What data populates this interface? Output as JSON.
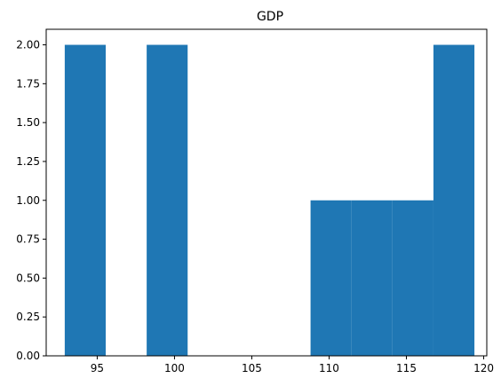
{
  "chart_data": {
    "type": "bar",
    "title": "GDP",
    "xlabel": "",
    "ylabel": "",
    "xlim": [
      91.7,
      120.2
    ],
    "ylim": [
      0,
      2.1
    ],
    "bins": [
      {
        "x0": 92.9,
        "x1": 95.55,
        "count": 2
      },
      {
        "x0": 95.55,
        "x1": 98.2,
        "count": 0
      },
      {
        "x0": 98.2,
        "x1": 100.85,
        "count": 2
      },
      {
        "x0": 100.85,
        "x1": 103.5,
        "count": 0
      },
      {
        "x0": 103.5,
        "x1": 106.15,
        "count": 0
      },
      {
        "x0": 106.15,
        "x1": 108.8,
        "count": 0
      },
      {
        "x0": 108.8,
        "x1": 111.45,
        "count": 1
      },
      {
        "x0": 111.45,
        "x1": 114.1,
        "count": 1
      },
      {
        "x0": 114.1,
        "x1": 116.75,
        "count": 1
      },
      {
        "x0": 116.75,
        "x1": 119.4,
        "count": 2
      }
    ],
    "x_ticks": [
      95,
      100,
      105,
      110,
      115,
      120
    ],
    "x_tick_labels": [
      "95",
      "100",
      "105",
      "110",
      "115",
      "120"
    ],
    "y_ticks": [
      0,
      0.25,
      0.5,
      0.75,
      1.0,
      1.25,
      1.5,
      1.75,
      2.0
    ],
    "y_tick_labels": [
      "0.00",
      "0.25",
      "0.50",
      "0.75",
      "1.00",
      "1.25",
      "1.50",
      "1.75",
      "2.00"
    ],
    "bar_color": "#1f77b4",
    "grid": false,
    "legend": "none"
  }
}
